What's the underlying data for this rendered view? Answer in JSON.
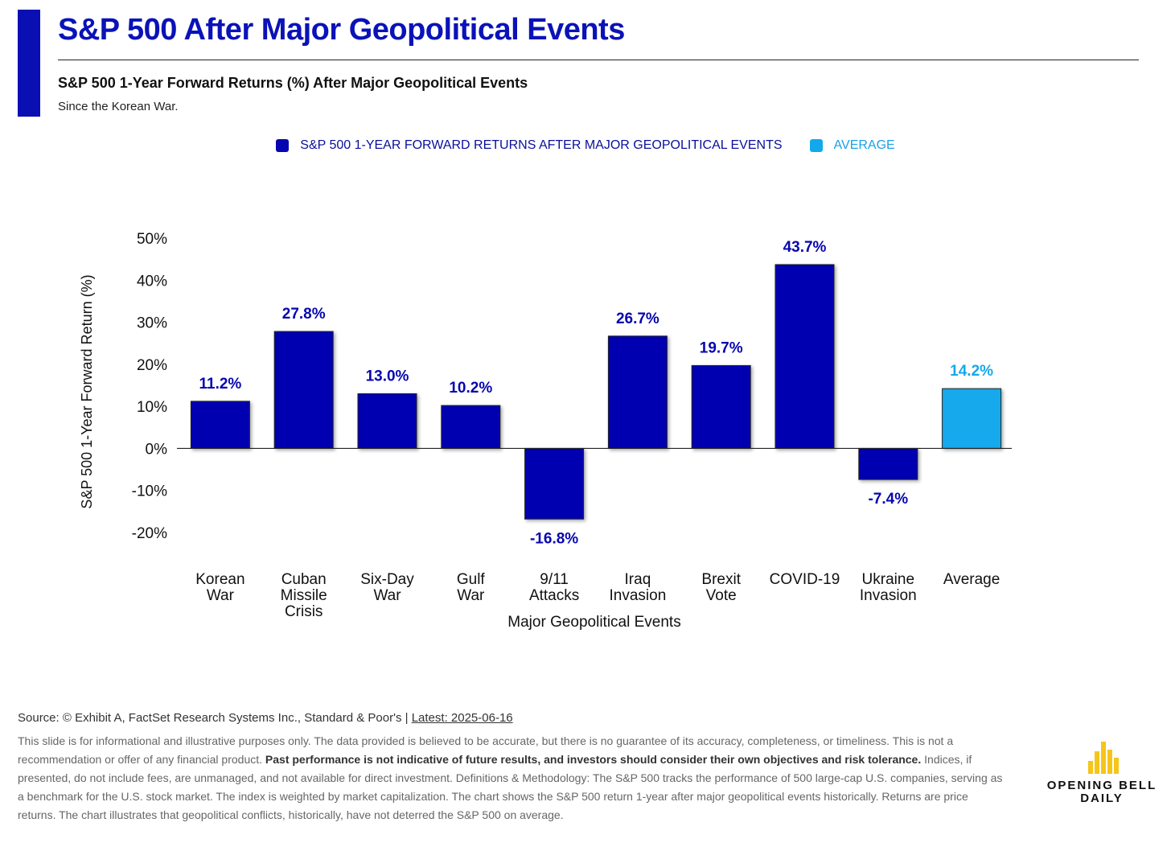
{
  "header": {
    "title": "S&P 500 After Major Geopolitical Events",
    "subtitle": "S&P 500 1-Year Forward Returns (%) After Major Geopolitical Events",
    "note": "Since the Korean War."
  },
  "legend": {
    "series_label": "S&P 500 1-YEAR FORWARD RETURNS AFTER MAJOR GEOPOLITICAL EVENTS",
    "average_label": "AVERAGE"
  },
  "colors": {
    "accent": "#0a0fb4",
    "series": "#0606b0",
    "average": "#12a9ec",
    "series_label": "#0a0f9c",
    "average_label": "#1aa1e6"
  },
  "chart_data": {
    "type": "bar",
    "categories": [
      [
        "Korean",
        "War"
      ],
      [
        "Cuban",
        "Missile",
        "Crisis"
      ],
      [
        "Six-Day",
        "War"
      ],
      [
        "Gulf",
        "War"
      ],
      [
        "9/11",
        "Attacks"
      ],
      [
        "Iraq",
        "Invasion"
      ],
      [
        "Brexit",
        "Vote"
      ],
      [
        "COVID-19"
      ],
      [
        "Ukraine",
        "Invasion"
      ],
      [
        "Average"
      ]
    ],
    "values": [
      11.2,
      27.8,
      13.0,
      10.2,
      -16.8,
      26.7,
      19.7,
      43.7,
      -7.4,
      14.2
    ],
    "data_labels": [
      "11.2%",
      "27.8%",
      "13.0%",
      "10.2%",
      "-16.8%",
      "26.7%",
      "19.7%",
      "43.7%",
      "-7.4%",
      "14.2%"
    ],
    "average_index": 9,
    "xlabel": "Major Geopolitical Events",
    "ylabel": "S&P 500 1-Year Forward Return (%)",
    "ylim": [
      -20,
      50
    ],
    "yticks": [
      50,
      40,
      30,
      20,
      10,
      0,
      -10,
      -20
    ],
    "ytick_labels": [
      "50%",
      "40%",
      "30%",
      "20%",
      "10%",
      "0%",
      "-10%",
      "-20%"
    ],
    "grid": false,
    "legend_position": "top-center"
  },
  "footer": {
    "source_text": "Source: © Exhibit A, FactSet Research Systems Inc., Standard & Poor's | ",
    "latest": "Latest: 2025-06-16",
    "disclaimer_1": "This slide is for informational and illustrative purposes only. The data provided is believed to be accurate, but there is no guarantee of its accuracy, completeness, or timeliness. This is not a recommendation or offer of any financial product. ",
    "disclaimer_bold": "Past performance is not indicative of future results, and investors should consider their own objectives and risk tolerance.",
    "disclaimer_2": " Indices, if presented, do not include fees, are unmanaged, and not available for direct investment. Definitions & Methodology: The S&P 500 tracks the performance of 500 large-cap U.S. companies, serving as a benchmark for the U.S. stock market. The index is weighted by market capitalization. The chart shows the S&P 500 return 1-year after major geopolitical events historically. Returns are price returns. The chart illustrates that geopolitical conflicts, historically, have not deterred the S&P 500 on average."
  },
  "logo": {
    "line1": "OPENING BELL",
    "line2": "DAILY",
    "color": "#f5c518"
  }
}
